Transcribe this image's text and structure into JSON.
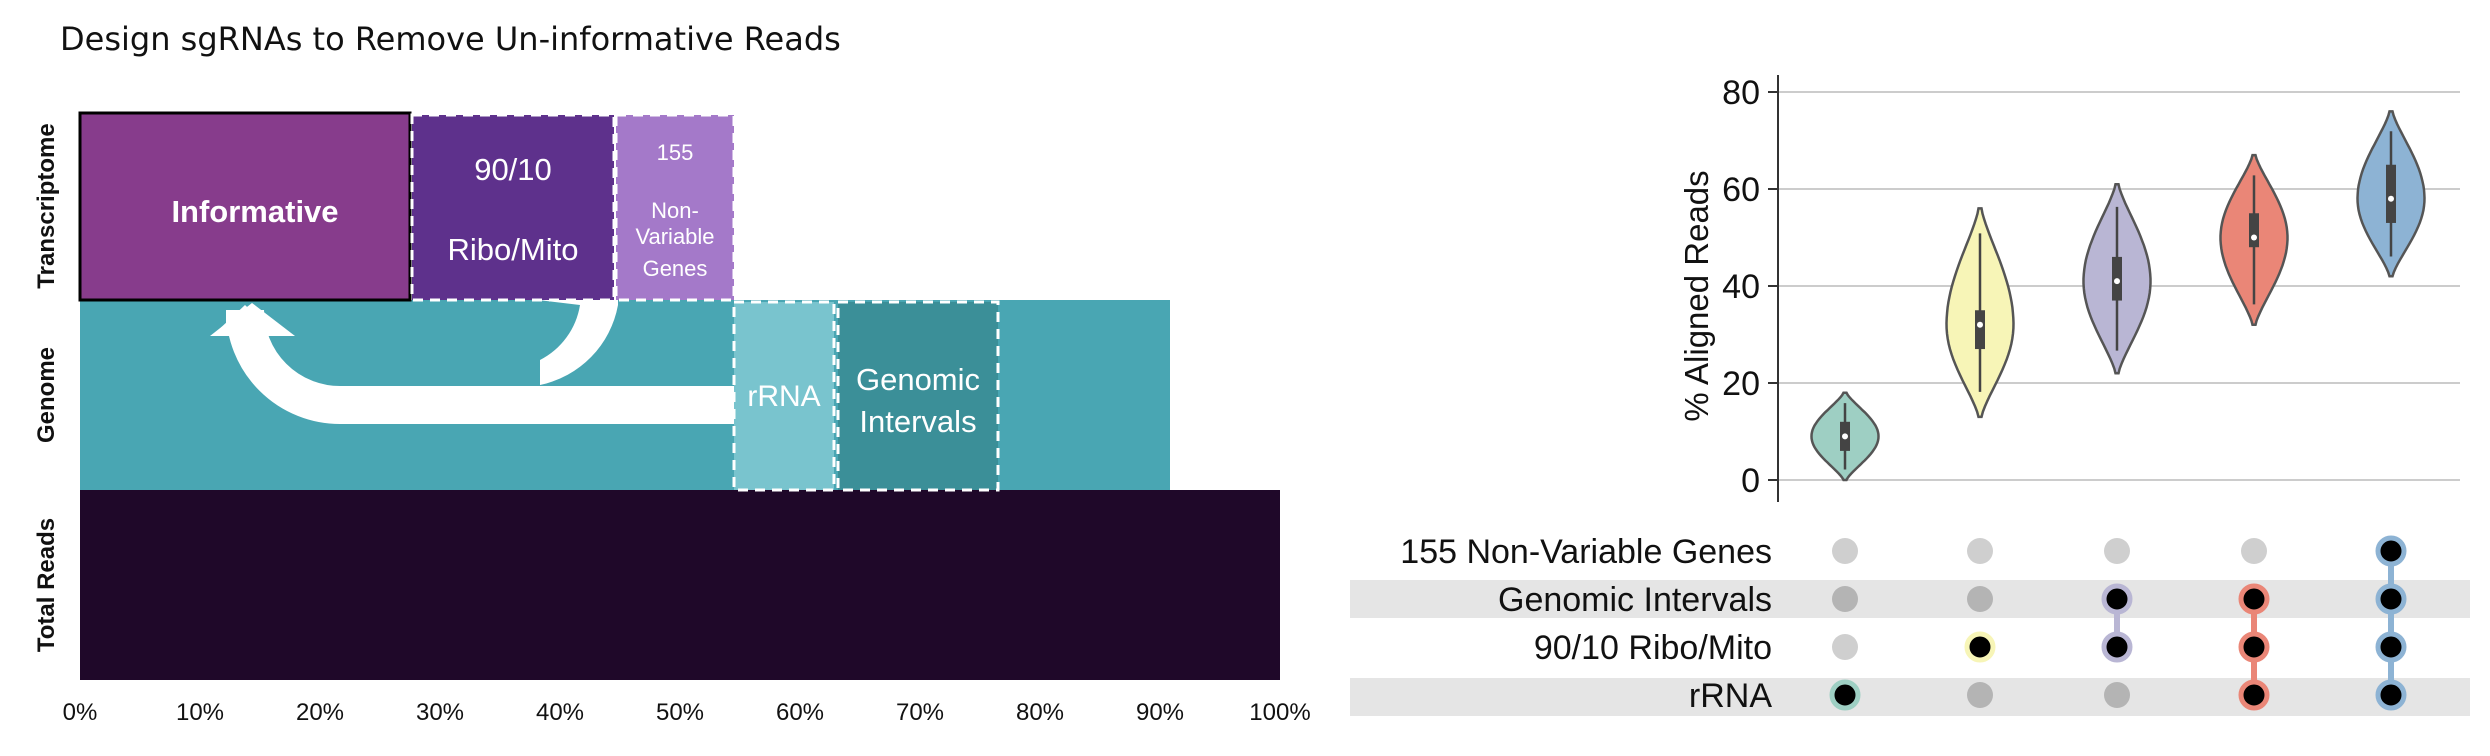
{
  "title": "Design sgRNAs to Remove Un-informative Reads",
  "bar_diagram": {
    "row_labels": [
      "Transcriptome",
      "Genome",
      "Total Reads"
    ],
    "x_ticks": [
      "0%",
      "10%",
      "20%",
      "30%",
      "40%",
      "50%",
      "60%",
      "70%",
      "80%",
      "90%",
      "100%"
    ],
    "segments": {
      "informative": "Informative",
      "ribo_mito_line1": "90/10",
      "ribo_mito_line2": "Ribo/Mito",
      "nonvar_line1": "155",
      "nonvar_line2": "Non-",
      "nonvar_line3": "Variable",
      "nonvar_line4": "Genes",
      "rrna": "rRNA",
      "genomic_line1": "Genomic",
      "genomic_line2": "Intervals"
    },
    "colors": {
      "informative": "#873c8c",
      "ribo_mito": "#5e318c",
      "nonvar": "#a479c9",
      "genome": "#49a6b3",
      "rrna": "#79c4ce",
      "genomic": "#3b8f98",
      "total": "#1f0829"
    }
  },
  "chart_data": {
    "type": "violin",
    "ylabel": "% Aligned Reads",
    "ylim": [
      0,
      80
    ],
    "yticks": [
      "0",
      "20",
      "40",
      "60",
      "80"
    ],
    "series": [
      {
        "min": 0,
        "q1": 6,
        "median": 9,
        "q3": 12,
        "max": 18,
        "color": "#9ecfc3"
      },
      {
        "min": 13,
        "q1": 27,
        "median": 32,
        "q3": 35,
        "max": 56,
        "color": "#f7f5b7"
      },
      {
        "min": 22,
        "q1": 37,
        "median": 41,
        "q3": 46,
        "max": 61,
        "color": "#b9b6d4"
      },
      {
        "min": 32,
        "q1": 48,
        "median": 50,
        "q3": 55,
        "max": 67,
        "color": "#ea8677"
      },
      {
        "min": 42,
        "q1": 53,
        "median": 58,
        "q3": 65,
        "max": 76,
        "color": "#8db3d4"
      }
    ]
  },
  "upset": {
    "rows": [
      "155 Non-Variable Genes",
      "Genomic Intervals",
      "90/10 Ribo/Mito",
      "rRNA"
    ],
    "matrix": [
      [
        0,
        0,
        0,
        1
      ],
      [
        0,
        0,
        1,
        0
      ],
      [
        0,
        1,
        1,
        0
      ],
      [
        0,
        1,
        1,
        1
      ],
      [
        1,
        1,
        1,
        1
      ]
    ]
  }
}
